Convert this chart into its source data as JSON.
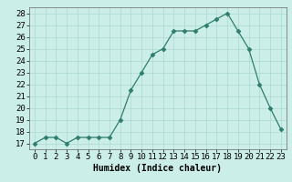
{
  "x": [
    0,
    1,
    2,
    3,
    4,
    5,
    6,
    7,
    8,
    9,
    10,
    11,
    12,
    13,
    14,
    15,
    16,
    17,
    18,
    19,
    20,
    21,
    22,
    23
  ],
  "y": [
    17.0,
    17.5,
    17.5,
    17.0,
    17.5,
    17.5,
    17.5,
    17.5,
    19.0,
    21.5,
    23.0,
    24.5,
    25.0,
    26.5,
    26.5,
    26.5,
    27.0,
    27.5,
    28.0,
    26.5,
    25.0,
    22.0,
    20.0,
    18.2
  ],
  "line_color": "#2e7d6e",
  "marker": "D",
  "marker_size": 2.5,
  "bg_color": "#cceee8",
  "grid_color": "#aad8d0",
  "xlabel": "Humidex (Indice chaleur)",
  "xlim": [
    -0.5,
    23.5
  ],
  "ylim": [
    16.5,
    28.5
  ],
  "yticks": [
    17,
    18,
    19,
    20,
    21,
    22,
    23,
    24,
    25,
    26,
    27,
    28
  ],
  "xticks": [
    0,
    1,
    2,
    3,
    4,
    5,
    6,
    7,
    8,
    9,
    10,
    11,
    12,
    13,
    14,
    15,
    16,
    17,
    18,
    19,
    20,
    21,
    22,
    23
  ],
  "label_fontsize": 7,
  "tick_fontsize": 6.5
}
